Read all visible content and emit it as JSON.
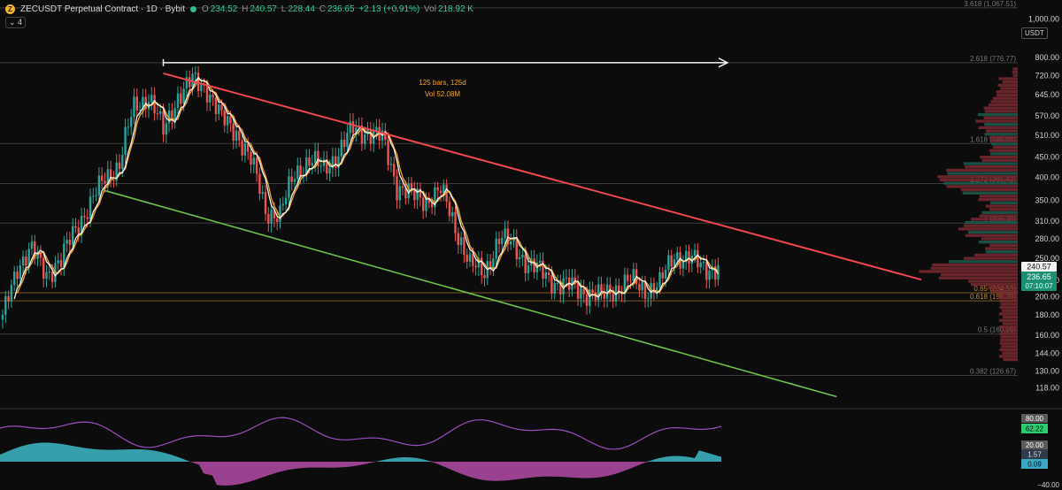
{
  "header": {
    "symbol_title": "ZECUSDT Perpetual Contract · 1D · Bybit",
    "o_label": "O",
    "o_value": "234.52",
    "h_label": "H",
    "h_value": "240.57",
    "l_label": "L",
    "l_value": "228.44",
    "c_label": "C",
    "c_value": "236.65",
    "change": "+2.13 (+0.91%)",
    "vol_label": "Vol",
    "vol_value": "218.92 K",
    "indicator_count": "4",
    "currency": "USDT"
  },
  "colors": {
    "bull": "#26a69a",
    "bear": "#ef5350",
    "resistance": "#f0474d",
    "support": "#6cc24a",
    "accent_orange": "#f5a623",
    "volume_profile": "#7a2a31",
    "volume_profile_green": "#1d5d4e"
  },
  "chart_data": {
    "type": "line",
    "y_scale": "log",
    "ylim": [
      110,
      1100
    ],
    "y_ticks": [
      "1,000.00",
      "800.00",
      "720.00",
      "645.00",
      "570.00",
      "510.00",
      "450.00",
      "400.00",
      "350.00",
      "310.00",
      "280.00",
      "250.00",
      "220.00",
      "200.00",
      "180.00",
      "160.00",
      "144.00",
      "130.00",
      "118.00"
    ],
    "y_tick_values": [
      1000,
      800,
      720,
      645,
      570,
      510,
      450,
      400,
      350,
      310,
      280,
      250,
      220,
      200,
      180,
      160,
      144,
      130,
      118
    ],
    "fib_levels": [
      {
        "label": "3.618 (1,067.51)",
        "value": 1067.51
      },
      {
        "label": "2.618 (776.77)",
        "value": 776.77
      },
      {
        "label": "1.618 (486.03)",
        "value": 486.03
      },
      {
        "label": "1.272 (385.43)",
        "value": 385.43
      },
      {
        "label": "1 (306.38)",
        "value": 306.38
      },
      {
        "label": "0.65 (204.59)",
        "value": 204.59
      },
      {
        "label": "0.618 (195.29)",
        "value": 195.29
      },
      {
        "label": "0.5 (160.98)",
        "value": 160.98
      },
      {
        "label": "0.382 (126.67)",
        "value": 126.67
      }
    ],
    "price_series": {
      "name": "",
      "bar": [
        0,
        5,
        10,
        15,
        20,
        25,
        30,
        35,
        40,
        45,
        50,
        55,
        60,
        65,
        70,
        75,
        80,
        85,
        90,
        95,
        100,
        105,
        110,
        115,
        120,
        125,
        130,
        135,
        140,
        145,
        150,
        155,
        160,
        165,
        170,
        175,
        180,
        185,
        190,
        195,
        200,
        205,
        210,
        215,
        220,
        225,
        230,
        235,
        240
      ],
      "close": [
        175,
        240,
        260,
        230,
        245,
        300,
        340,
        400,
        430,
        600,
        640,
        520,
        640,
        700,
        670,
        560,
        520,
        440,
        330,
        320,
        410,
        440,
        420,
        460,
        530,
        520,
        500,
        380,
        360,
        350,
        370,
        300,
        240,
        230,
        280,
        270,
        240,
        230,
        215,
        212,
        205,
        200,
        210,
        220,
        208,
        215,
        255,
        250,
        236.65
      ]
    },
    "resistance_line": {
      "points": [
        [
          55,
          730
        ],
        [
          260,
          278
        ]
      ]
    },
    "support_line": {
      "points": [
        [
          35,
          370
        ],
        [
          228,
          134
        ]
      ]
    },
    "measure": {
      "text_bars": "125 bars, 125d",
      "text_vol": "Vol 52.08M",
      "from_bar": 55,
      "to_bar": 180,
      "price": 776.77
    },
    "price_labels": {
      "high_label": "240.57",
      "last_label": "236.65",
      "countdown": "07:10:07"
    },
    "oscillator": {
      "ticks": [
        "80.00",
        "20.00",
        "−40.00"
      ],
      "value_labels": [
        "62.22",
        "1.57",
        "0.09"
      ]
    }
  }
}
